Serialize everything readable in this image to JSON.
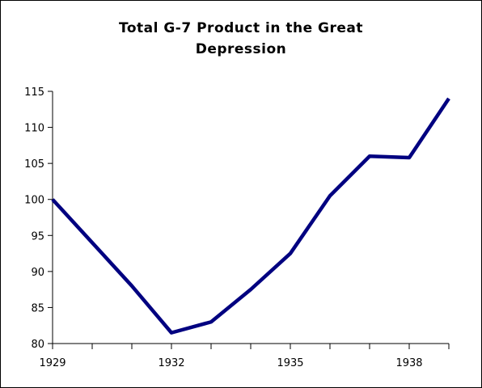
{
  "chart_data": {
    "type": "line",
    "title_lines": [
      "Total G-7 Product in the Great",
      "Depression"
    ],
    "xlabel": "",
    "ylabel": "",
    "x": [
      1929,
      1930,
      1931,
      1932,
      1933,
      1934,
      1935,
      1936,
      1937,
      1938,
      1939
    ],
    "series": [
      {
        "values": [
          100,
          94,
          88,
          81.5,
          83,
          87.5,
          92.5,
          100.5,
          106,
          105.8,
          114
        ]
      }
    ],
    "xlim": [
      1929,
      1939
    ],
    "ylim": [
      80,
      115
    ],
    "x_tick_labels": [
      "1929",
      "1932",
      "1935",
      "1938"
    ],
    "x_tick_label_years": [
      1929,
      1932,
      1935,
      1938
    ],
    "x_minor_ticks": [
      1929,
      1930,
      1931,
      1932,
      1933,
      1934,
      1935,
      1936,
      1937,
      1938,
      1939
    ],
    "y_tick_labels": [
      "80",
      "85",
      "90",
      "95",
      "100",
      "105",
      "110",
      "115"
    ],
    "y_ticks": [
      80,
      85,
      90,
      95,
      100,
      105,
      110,
      115
    ],
    "grid": false,
    "legend": "none",
    "line_color": "#000080",
    "axis_color": "#000000"
  }
}
